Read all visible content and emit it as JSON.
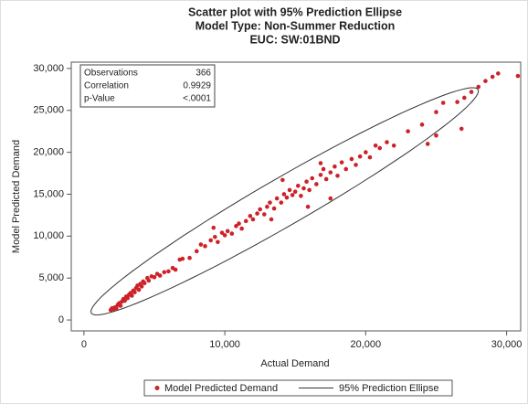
{
  "chart_data": {
    "type": "scatter",
    "title": "Scatter plot with 95% Prediction Ellipse",
    "subtitles": [
      "Model Type: Non-Summer Reduction",
      "EUC: SW:01BND"
    ],
    "x_label": "Actual Demand",
    "y_label": "Model Predicted Demand",
    "xlim": [
      -900,
      31000
    ],
    "ylim": [
      -1300,
      30750
    ],
    "xticks": [
      0,
      {
        "value": 10000,
        "label": "10,000"
      },
      {
        "value": 20000,
        "label": "20,000"
      },
      {
        "value": 30000,
        "label": "30,000"
      }
    ],
    "yticks": [
      0,
      {
        "value": 5000,
        "label": "5,000"
      },
      {
        "value": 10000,
        "label": "10,000"
      },
      {
        "value": 15000,
        "label": "15,000"
      },
      {
        "value": 20000,
        "label": "20,000"
      },
      {
        "value": 25000,
        "label": "25,000"
      },
      {
        "value": 30000,
        "label": "30,000"
      }
    ],
    "series": [
      {
        "name": "Model Predicted Demand",
        "color": "#cc2229",
        "x": [
          1900,
          2000,
          2100,
          2200,
          2300,
          2400,
          2500,
          2600,
          2700,
          2800,
          2900,
          3000,
          3100,
          3200,
          3300,
          3400,
          3500,
          3600,
          3700,
          3800,
          3900,
          4000,
          4100,
          4200,
          4300,
          4500,
          4600,
          4800,
          5000,
          5200,
          5400,
          5700,
          6000,
          6300,
          6500,
          6800,
          7000,
          7500,
          8000,
          8300,
          8600,
          9000,
          9200,
          9300,
          9500,
          9800,
          10000,
          10200,
          10500,
          10800,
          11000,
          11200,
          11500,
          11800,
          12000,
          12300,
          12500,
          12800,
          13000,
          13200,
          13300,
          13500,
          13700,
          14000,
          14100,
          14200,
          14400,
          14600,
          14800,
          15000,
          15200,
          15400,
          15600,
          15800,
          15900,
          16000,
          16200,
          16500,
          16800,
          16800,
          17000,
          17200,
          17500,
          17500,
          17800,
          18000,
          18300,
          18600,
          19000,
          19300,
          19600,
          20000,
          20300,
          20700,
          21000,
          21500,
          22000,
          23000,
          24000,
          24400,
          25000,
          25000,
          25500,
          26500,
          26800,
          27000,
          27500,
          28000,
          28500,
          29000,
          29400,
          30800
        ],
        "y": [
          1200,
          1400,
          1300,
          1500,
          1400,
          1800,
          2000,
          1700,
          2200,
          2500,
          2300,
          2800,
          2600,
          3000,
          3200,
          2900,
          3500,
          3300,
          3800,
          4100,
          3600,
          4300,
          4000,
          4600,
          4400,
          5000,
          4700,
          5200,
          5100,
          5500,
          5300,
          5700,
          5800,
          6200,
          6000,
          7200,
          7300,
          7400,
          8200,
          9000,
          8800,
          9500,
          11000,
          9900,
          9300,
          10400,
          10100,
          10600,
          10300,
          11200,
          11500,
          10900,
          11800,
          12400,
          12000,
          12700,
          13200,
          12600,
          13500,
          14000,
          12000,
          13300,
          14500,
          14000,
          16700,
          15000,
          14600,
          15500,
          14900,
          15300,
          16000,
          14800,
          15700,
          16500,
          13500,
          15500,
          16900,
          16200,
          17300,
          18700,
          18000,
          16800,
          17600,
          14500,
          18300,
          17200,
          18800,
          18000,
          19200,
          18500,
          19500,
          20000,
          19400,
          20800,
          20500,
          21200,
          20800,
          22500,
          23300,
          21000,
          24800,
          22000,
          25900,
          26000,
          22800,
          26500,
          27200,
          27800,
          28500,
          29000,
          29400,
          29100
        ]
      }
    ],
    "ellipse": {
      "name": "95% Prediction Ellipse",
      "color": "#333333",
      "center": [
        14250,
        14150
      ],
      "major": [
        13650,
        13450
      ],
      "minor": [
        -1650,
        1650
      ]
    },
    "stats": [
      {
        "label": "Observations",
        "value": 366
      },
      {
        "label": "Correlation",
        "value": 0.9929
      },
      {
        "label": "p-Value",
        "value": "<.0001"
      }
    ]
  }
}
